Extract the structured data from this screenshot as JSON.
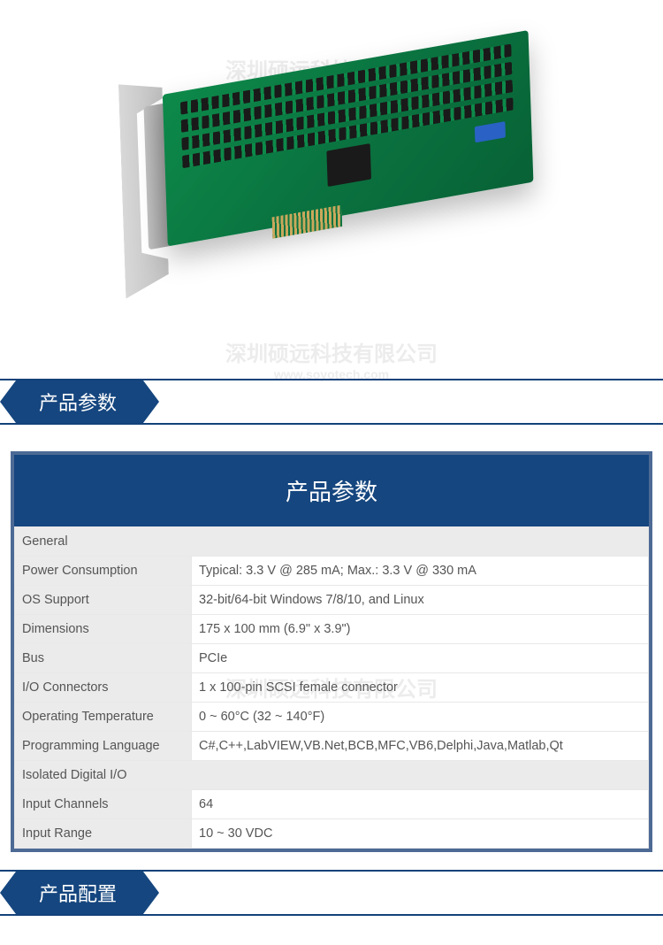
{
  "watermarks": {
    "top": "深圳硕远科技有限公司",
    "mid": "深圳硕远科技有限公司",
    "mid_sub": "www.soyotech.com",
    "panel": "深圳硕远科技有限公司"
  },
  "sections": {
    "specs_header": "产品参数",
    "config_header": "产品配置"
  },
  "panel": {
    "title": "产品参数",
    "title_bg": "#15467f",
    "title_color": "#ffffff",
    "title_fontsize": 26,
    "border_color": "#4d6a95",
    "label_bg": "#ebebeb",
    "value_bg": "#ffffff",
    "text_color": "#555555",
    "cell_border": "#e8e8e8",
    "fontsize": 14.5,
    "label_col_width": 200
  },
  "specs": {
    "groups": [
      {
        "name": "General",
        "rows": [
          {
            "label": "Power Consumption",
            "value": "Typical: 3.3 V @ 285 mA; Max.: 3.3 V @ 330 mA"
          },
          {
            "label": "OS Support",
            "value": "32-bit/64-bit Windows 7/8/10, and Linux"
          },
          {
            "label": "Dimensions",
            "value": "175 x 100 mm (6.9\" x 3.9\")"
          },
          {
            "label": "Bus",
            "value": "PCIe"
          },
          {
            "label": "I/O Connectors",
            "value": "1 x 100-pin SCSI female connector"
          },
          {
            "label": "Operating Temperature",
            "value": "0 ~ 60°C (32 ~ 140°F)"
          },
          {
            "label": "Programming Language",
            "value": "C#,C++,LabVIEW,VB.Net,BCB,MFC,VB6,Delphi,Java,Matlab,Qt"
          }
        ]
      },
      {
        "name": "Isolated Digital I/O",
        "rows": [
          {
            "label": "Input Channels",
            "value": "64"
          },
          {
            "label": "Input Range",
            "value": "10 ~ 30 VDC"
          }
        ]
      }
    ]
  },
  "section_header_style": {
    "bar_border": "#13427a",
    "tab_bg": "#15467f",
    "tab_color": "#ffffff",
    "tab_fontsize": 22
  },
  "product_image": {
    "type": "pcie-card-illustration",
    "pcb_color": "#0d8a4a",
    "bracket_color": "#c8c8c8",
    "chip_color": "#1a1a1a",
    "dip_switch_color": "#2962c4",
    "connector_gold": "#c9a85c"
  }
}
